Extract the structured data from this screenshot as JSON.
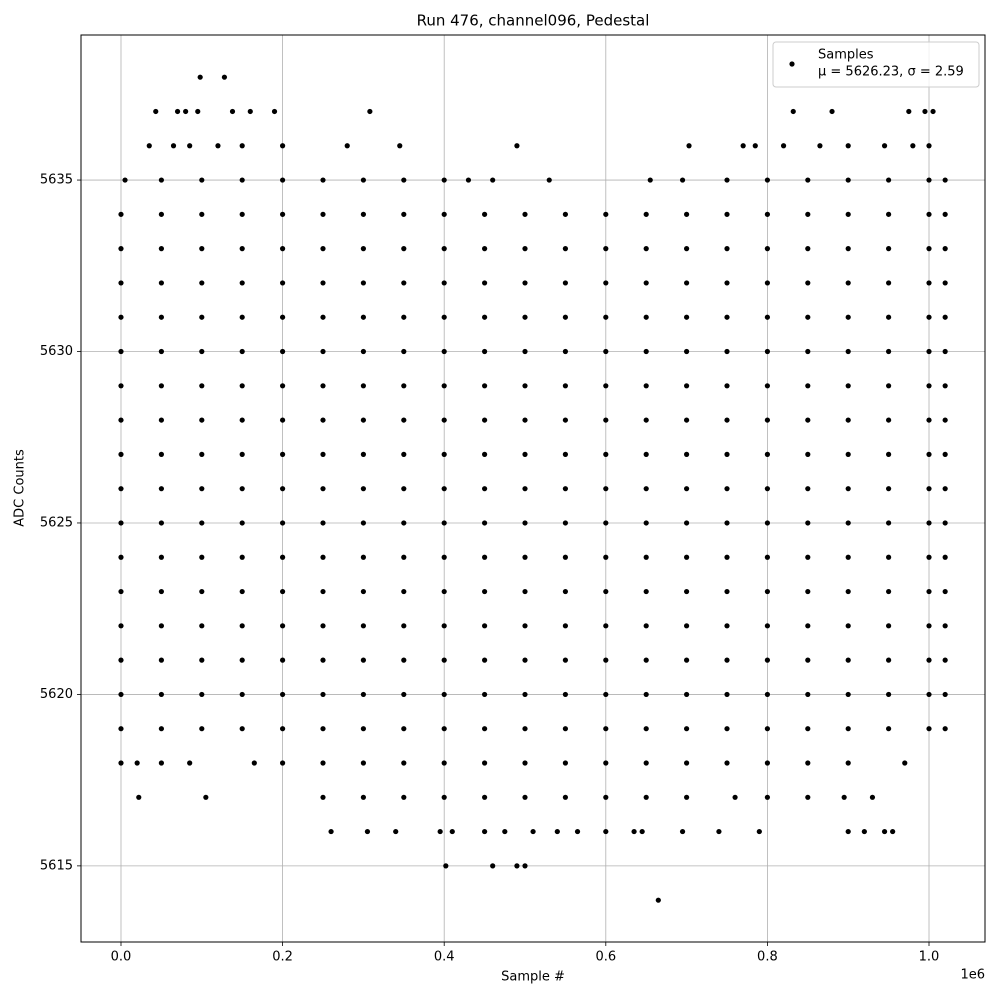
{
  "chart_data": {
    "type": "scatter",
    "title": "Run 476, channel096, Pedestal",
    "xlabel": "Sample #",
    "ylabel": "ADC Counts",
    "x_offset_label": "1e6",
    "xlim": [
      -49500,
      1069300
    ],
    "ylim": [
      5612.78,
      5639.23
    ],
    "xticks": [
      {
        "value": 0,
        "label": "0.0"
      },
      {
        "value": 200000,
        "label": "0.2"
      },
      {
        "value": 400000,
        "label": "0.4"
      },
      {
        "value": 600000,
        "label": "0.6"
      },
      {
        "value": 800000,
        "label": "0.8"
      },
      {
        "value": 1000000,
        "label": "1.0"
      }
    ],
    "yticks": [
      5615,
      5620,
      5625,
      5630,
      5635
    ],
    "grid": true,
    "legend_position": "upper-right",
    "legend_note": "μ = 5626.23, σ = 2.59",
    "series": [
      {
        "name": "Samples",
        "color": "#000000",
        "x": [
          0,
          50000,
          100000,
          150000,
          200000,
          250000,
          300000,
          350000,
          400000,
          450000,
          500000,
          550000,
          600000,
          650000,
          700000,
          750000,
          800000,
          850000,
          900000,
          950000,
          1000000,
          1020000,
          0,
          50000,
          100000,
          150000,
          200000,
          250000,
          300000,
          350000,
          400000,
          450000,
          500000,
          550000,
          600000,
          650000,
          700000,
          750000,
          800000,
          850000,
          900000,
          950000,
          1000000,
          1020000,
          0,
          50000,
          100000,
          150000,
          200000,
          250000,
          300000,
          350000,
          400000,
          450000,
          500000,
          550000,
          600000,
          650000,
          700000,
          750000,
          800000,
          850000,
          900000,
          950000,
          1000000,
          1020000,
          0,
          50000,
          100000,
          150000,
          200000,
          250000,
          300000,
          350000,
          400000,
          450000,
          500000,
          550000,
          600000,
          650000,
          700000,
          750000,
          800000,
          850000,
          900000,
          950000,
          1000000,
          1020000,
          0,
          50000,
          100000,
          150000,
          200000,
          250000,
          300000,
          350000,
          400000,
          450000,
          500000,
          550000,
          600000,
          650000,
          700000,
          750000,
          800000,
          850000,
          900000,
          950000,
          1000000,
          1020000,
          0,
          50000,
          100000,
          150000,
          200000,
          250000,
          300000,
          350000,
          400000,
          450000,
          500000,
          550000,
          600000,
          650000,
          700000,
          750000,
          800000,
          850000,
          900000,
          950000,
          1000000,
          1020000,
          0,
          50000,
          100000,
          150000,
          200000,
          250000,
          300000,
          350000,
          400000,
          450000,
          500000,
          550000,
          600000,
          650000,
          700000,
          750000,
          800000,
          850000,
          900000,
          950000,
          1000000,
          1020000,
          0,
          50000,
          100000,
          150000,
          200000,
          250000,
          300000,
          350000,
          400000,
          450000,
          500000,
          550000,
          600000,
          650000,
          700000,
          750000,
          800000,
          850000,
          900000,
          950000,
          1000000,
          1020000,
          0,
          50000,
          100000,
          150000,
          200000,
          250000,
          300000,
          350000,
          400000,
          450000,
          500000,
          550000,
          600000,
          650000,
          700000,
          750000,
          800000,
          850000,
          900000,
          950000,
          1000000,
          1020000,
          0,
          50000,
          100000,
          150000,
          200000,
          250000,
          300000,
          350000,
          400000,
          450000,
          500000,
          550000,
          600000,
          650000,
          700000,
          750000,
          800000,
          850000,
          900000,
          950000,
          1000000,
          1020000,
          0,
          50000,
          100000,
          150000,
          200000,
          250000,
          300000,
          350000,
          400000,
          450000,
          500000,
          550000,
          600000,
          650000,
          700000,
          750000,
          800000,
          850000,
          900000,
          950000,
          1000000,
          1020000,
          0,
          50000,
          100000,
          150000,
          200000,
          250000,
          300000,
          350000,
          400000,
          450000,
          500000,
          550000,
          600000,
          650000,
          700000,
          750000,
          800000,
          850000,
          900000,
          950000,
          1000000,
          1020000,
          0,
          50000,
          100000,
          150000,
          200000,
          250000,
          300000,
          350000,
          400000,
          450000,
          500000,
          550000,
          600000,
          650000,
          700000,
          750000,
          800000,
          850000,
          900000,
          950000,
          1000000,
          1020000,
          0,
          50000,
          100000,
          150000,
          200000,
          250000,
          300000,
          350000,
          400000,
          450000,
          500000,
          550000,
          600000,
          650000,
          700000,
          750000,
          800000,
          850000,
          900000,
          950000,
          1000000,
          1020000,
          0,
          50000,
          100000,
          150000,
          200000,
          250000,
          300000,
          350000,
          400000,
          450000,
          500000,
          550000,
          600000,
          650000,
          700000,
          750000,
          800000,
          850000,
          900000,
          950000,
          1000000,
          1020000,
          0,
          50000,
          100000,
          150000,
          200000,
          250000,
          300000,
          350000,
          400000,
          450000,
          500000,
          550000,
          600000,
          650000,
          700000,
          750000,
          800000,
          850000,
          900000,
          950000,
          1000000,
          1020000,
          98000,
          128000,
          43000,
          70000,
          80000,
          95000,
          138000,
          160000,
          190000,
          308000,
          832000,
          880000,
          975000,
          995000,
          1005000,
          35000,
          65000,
          85000,
          120000,
          150000,
          200000,
          280000,
          345000,
          490000,
          703000,
          770000,
          785000,
          820000,
          865000,
          900000,
          945000,
          980000,
          1000000,
          5000,
          50000,
          100000,
          150000,
          200000,
          250000,
          300000,
          350000,
          400000,
          430000,
          460000,
          530000,
          655000,
          695000,
          750000,
          800000,
          850000,
          900000,
          950000,
          1000000,
          1020000,
          0,
          20000,
          50000,
          85000,
          165000,
          200000,
          250000,
          300000,
          350000,
          400000,
          450000,
          500000,
          550000,
          600000,
          650000,
          700000,
          750000,
          800000,
          850000,
          900000,
          970000,
          22000,
          105000,
          250000,
          300000,
          350000,
          400000,
          450000,
          500000,
          550000,
          600000,
          650000,
          700000,
          760000,
          800000,
          850000,
          895000,
          930000,
          260000,
          305000,
          340000,
          395000,
          410000,
          450000,
          475000,
          510000,
          540000,
          565000,
          600000,
          635000,
          645000,
          695000,
          740000,
          790000,
          900000,
          920000,
          945000,
          955000,
          402000,
          460000,
          490000,
          500000,
          665000
        ],
        "values": [
          5634,
          5634,
          5634,
          5634,
          5634,
          5634,
          5634,
          5634,
          5634,
          5634,
          5634,
          5634,
          5634,
          5634,
          5634,
          5634,
          5634,
          5634,
          5634,
          5634,
          5634,
          5634,
          5633,
          5633,
          5633,
          5633,
          5633,
          5633,
          5633,
          5633,
          5633,
          5633,
          5633,
          5633,
          5633,
          5633,
          5633,
          5633,
          5633,
          5633,
          5633,
          5633,
          5633,
          5633,
          5632,
          5632,
          5632,
          5632,
          5632,
          5632,
          5632,
          5632,
          5632,
          5632,
          5632,
          5632,
          5632,
          5632,
          5632,
          5632,
          5632,
          5632,
          5632,
          5632,
          5632,
          5632,
          5631,
          5631,
          5631,
          5631,
          5631,
          5631,
          5631,
          5631,
          5631,
          5631,
          5631,
          5631,
          5631,
          5631,
          5631,
          5631,
          5631,
          5631,
          5631,
          5631,
          5631,
          5631,
          5630,
          5630,
          5630,
          5630,
          5630,
          5630,
          5630,
          5630,
          5630,
          5630,
          5630,
          5630,
          5630,
          5630,
          5630,
          5630,
          5630,
          5630,
          5630,
          5630,
          5630,
          5630,
          5629,
          5629,
          5629,
          5629,
          5629,
          5629,
          5629,
          5629,
          5629,
          5629,
          5629,
          5629,
          5629,
          5629,
          5629,
          5629,
          5629,
          5629,
          5629,
          5629,
          5629,
          5629,
          5628,
          5628,
          5628,
          5628,
          5628,
          5628,
          5628,
          5628,
          5628,
          5628,
          5628,
          5628,
          5628,
          5628,
          5628,
          5628,
          5628,
          5628,
          5628,
          5628,
          5628,
          5628,
          5627,
          5627,
          5627,
          5627,
          5627,
          5627,
          5627,
          5627,
          5627,
          5627,
          5627,
          5627,
          5627,
          5627,
          5627,
          5627,
          5627,
          5627,
          5627,
          5627,
          5627,
          5627,
          5626,
          5626,
          5626,
          5626,
          5626,
          5626,
          5626,
          5626,
          5626,
          5626,
          5626,
          5626,
          5626,
          5626,
          5626,
          5626,
          5626,
          5626,
          5626,
          5626,
          5626,
          5626,
          5625,
          5625,
          5625,
          5625,
          5625,
          5625,
          5625,
          5625,
          5625,
          5625,
          5625,
          5625,
          5625,
          5625,
          5625,
          5625,
          5625,
          5625,
          5625,
          5625,
          5625,
          5625,
          5624,
          5624,
          5624,
          5624,
          5624,
          5624,
          5624,
          5624,
          5624,
          5624,
          5624,
          5624,
          5624,
          5624,
          5624,
          5624,
          5624,
          5624,
          5624,
          5624,
          5624,
          5624,
          5623,
          5623,
          5623,
          5623,
          5623,
          5623,
          5623,
          5623,
          5623,
          5623,
          5623,
          5623,
          5623,
          5623,
          5623,
          5623,
          5623,
          5623,
          5623,
          5623,
          5623,
          5623,
          5622,
          5622,
          5622,
          5622,
          5622,
          5622,
          5622,
          5622,
          5622,
          5622,
          5622,
          5622,
          5622,
          5622,
          5622,
          5622,
          5622,
          5622,
          5622,
          5622,
          5622,
          5622,
          5621,
          5621,
          5621,
          5621,
          5621,
          5621,
          5621,
          5621,
          5621,
          5621,
          5621,
          5621,
          5621,
          5621,
          5621,
          5621,
          5621,
          5621,
          5621,
          5621,
          5621,
          5621,
          5620,
          5620,
          5620,
          5620,
          5620,
          5620,
          5620,
          5620,
          5620,
          5620,
          5620,
          5620,
          5620,
          5620,
          5620,
          5620,
          5620,
          5620,
          5620,
          5620,
          5620,
          5620,
          5619,
          5619,
          5619,
          5619,
          5619,
          5619,
          5619,
          5619,
          5619,
          5619,
          5619,
          5619,
          5619,
          5619,
          5619,
          5619,
          5619,
          5619,
          5619,
          5619,
          5619,
          5619,
          5638,
          5638,
          5637,
          5637,
          5637,
          5637,
          5637,
          5637,
          5637,
          5637,
          5637,
          5637,
          5637,
          5637,
          5637,
          5636,
          5636,
          5636,
          5636,
          5636,
          5636,
          5636,
          5636,
          5636,
          5636,
          5636,
          5636,
          5636,
          5636,
          5636,
          5636,
          5636,
          5636,
          5635,
          5635,
          5635,
          5635,
          5635,
          5635,
          5635,
          5635,
          5635,
          5635,
          5635,
          5635,
          5635,
          5635,
          5635,
          5635,
          5635,
          5635,
          5635,
          5635,
          5635,
          5618,
          5618,
          5618,
          5618,
          5618,
          5618,
          5618,
          5618,
          5618,
          5618,
          5618,
          5618,
          5618,
          5618,
          5618,
          5618,
          5618,
          5618,
          5618,
          5618,
          5618,
          5617,
          5617,
          5617,
          5617,
          5617,
          5617,
          5617,
          5617,
          5617,
          5617,
          5617,
          5617,
          5617,
          5617,
          5617,
          5617,
          5617,
          5616,
          5616,
          5616,
          5616,
          5616,
          5616,
          5616,
          5616,
          5616,
          5616,
          5616,
          5616,
          5616,
          5616,
          5616,
          5616,
          5616,
          5616,
          5616,
          5616,
          5615,
          5615,
          5615,
          5615,
          5614
        ]
      }
    ]
  }
}
